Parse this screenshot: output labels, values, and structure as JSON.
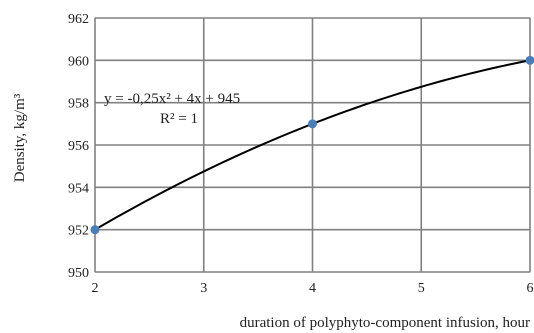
{
  "chart_data": {
    "type": "scatter",
    "xlabel": "duration of polyphyto-component infusion, hour",
    "ylabel": "Density, kg/m³",
    "xlim": [
      2,
      6
    ],
    "ylim": [
      950,
      962
    ],
    "x_ticks": [
      "2",
      "3",
      "4",
      "5",
      "6"
    ],
    "y_ticks": [
      "950",
      "952",
      "954",
      "956",
      "958",
      "960",
      "962"
    ],
    "grid": true,
    "series": [
      {
        "x": [
          2,
          4,
          6
        ],
        "y": [
          952,
          957,
          960
        ],
        "color": "#4a7ebb"
      }
    ],
    "trendline": {
      "type": "polynomial",
      "order": 2,
      "color": "#000000",
      "equation": "y = -0,25x² + 4x + 945",
      "r2": "R² = 1"
    }
  }
}
